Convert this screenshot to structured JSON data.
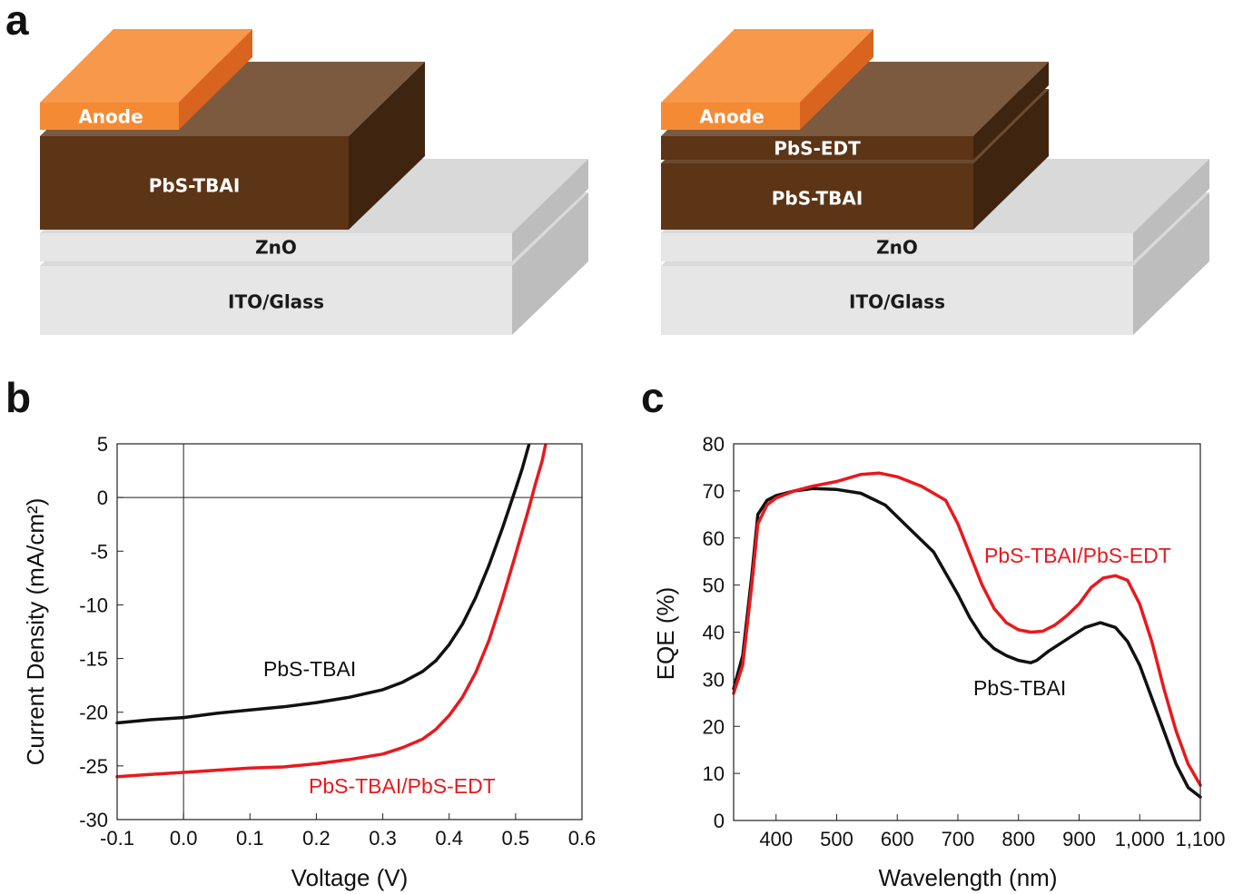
{
  "panel_labels": {
    "a": "a",
    "b": "b",
    "c": "c"
  },
  "device_left": {
    "layers": {
      "anode": "Anode",
      "absorber": "PbS-TBAI",
      "etl": "ZnO",
      "substrate": "ITO/Glass"
    }
  },
  "device_right": {
    "layers": {
      "anode": "Anode",
      "htl": "PbS-EDT",
      "absorber": "PbS-TBAI",
      "etl": "ZnO",
      "substrate": "ITO/Glass"
    }
  },
  "colors": {
    "anode_top": "#f7984a",
    "anode_front": "#f58a35",
    "anode_side": "#d9641f",
    "pbs_top": "#7b5a3f",
    "pbs_front": "#5c3416",
    "pbs_side": "#3f2410",
    "layer_top": "#d9d9d9",
    "layer_front": "#e6e6e6",
    "layer_side": "#bdbdbd",
    "series_black": "#111111",
    "series_red": "#e8191e"
  },
  "chart_data": [
    {
      "type": "line",
      "xlabel": "Voltage (V)",
      "ylabel": "Current Density (mA/cm²)",
      "xlim": [
        -0.1,
        0.6
      ],
      "ylim": [
        -30,
        5
      ],
      "xticks": [
        "-0.1",
        "0.0",
        "0.1",
        "0.2",
        "0.3",
        "0.4",
        "0.5",
        "0.6"
      ],
      "yticks": [
        "5",
        "0",
        "-5",
        "-10",
        "-15",
        "-20",
        "-25",
        "-30"
      ],
      "series": [
        {
          "name": "PbS-TBAI",
          "color": "#111111",
          "x": [
            -0.1,
            -0.05,
            0.0,
            0.05,
            0.1,
            0.15,
            0.2,
            0.25,
            0.3,
            0.33,
            0.36,
            0.38,
            0.4,
            0.42,
            0.44,
            0.46,
            0.48,
            0.5,
            0.51,
            0.52
          ],
          "y": [
            -21.0,
            -20.7,
            -20.5,
            -20.1,
            -19.8,
            -19.5,
            -19.1,
            -18.6,
            -17.9,
            -17.2,
            -16.2,
            -15.2,
            -13.7,
            -11.8,
            -9.3,
            -6.3,
            -2.9,
            0.8,
            2.7,
            4.9
          ]
        },
        {
          "name": "PbS-TBAI/PbS-EDT",
          "color": "#e8191e",
          "x": [
            -0.1,
            -0.05,
            0.0,
            0.05,
            0.1,
            0.15,
            0.2,
            0.25,
            0.3,
            0.33,
            0.36,
            0.38,
            0.4,
            0.42,
            0.44,
            0.46,
            0.48,
            0.5,
            0.52,
            0.53,
            0.54,
            0.545
          ],
          "y": [
            -26.0,
            -25.8,
            -25.6,
            -25.4,
            -25.2,
            -25.1,
            -24.8,
            -24.4,
            -23.9,
            -23.3,
            -22.5,
            -21.6,
            -20.3,
            -18.6,
            -16.3,
            -13.3,
            -9.5,
            -5.3,
            -1.0,
            1.3,
            3.4,
            4.9
          ]
        }
      ]
    },
    {
      "type": "line",
      "xlabel": "Wavelength (nm)",
      "ylabel": "EQE (%)",
      "xlim": [
        330,
        1100
      ],
      "ylim": [
        0,
        80
      ],
      "xticks": [
        "400",
        "500",
        "600",
        "700",
        "800",
        "900",
        "1,000",
        "1,100"
      ],
      "yticks": [
        "80",
        "70",
        "60",
        "50",
        "40",
        "30",
        "20",
        "10",
        "0"
      ],
      "series": [
        {
          "name": "PbS-TBAI",
          "color": "#111111",
          "x": [
            330,
            345,
            360,
            370,
            385,
            400,
            430,
            460,
            500,
            540,
            580,
            620,
            660,
            700,
            720,
            740,
            760,
            780,
            800,
            820,
            830,
            850,
            880,
            910,
            935,
            960,
            980,
            1000,
            1020,
            1040,
            1060,
            1080,
            1100
          ],
          "y": [
            28,
            35,
            52,
            65,
            68,
            69,
            70,
            70.5,
            70.3,
            69.5,
            67,
            62,
            57,
            48,
            43,
            39,
            36.5,
            35,
            34,
            33.5,
            34,
            36,
            38.5,
            41,
            42,
            41,
            38,
            33,
            26,
            19,
            12,
            7,
            5
          ]
        },
        {
          "name": "PbS-TBAI/PbS-EDT",
          "color": "#e8191e",
          "x": [
            330,
            345,
            360,
            370,
            385,
            400,
            430,
            460,
            500,
            540,
            570,
            600,
            640,
            680,
            700,
            720,
            740,
            760,
            780,
            800,
            820,
            840,
            860,
            880,
            900,
            920,
            940,
            960,
            980,
            1000,
            1020,
            1040,
            1060,
            1080,
            1100
          ],
          "y": [
            27,
            33,
            50,
            63,
            67,
            68.5,
            70,
            71,
            72,
            73.5,
            73.8,
            73,
            71,
            68,
            63,
            56.5,
            50,
            45,
            42,
            40.5,
            40,
            40.2,
            41.5,
            43.5,
            46,
            49.5,
            51.5,
            52,
            51,
            46,
            38,
            28,
            19,
            12,
            7.5
          ]
        }
      ]
    }
  ]
}
